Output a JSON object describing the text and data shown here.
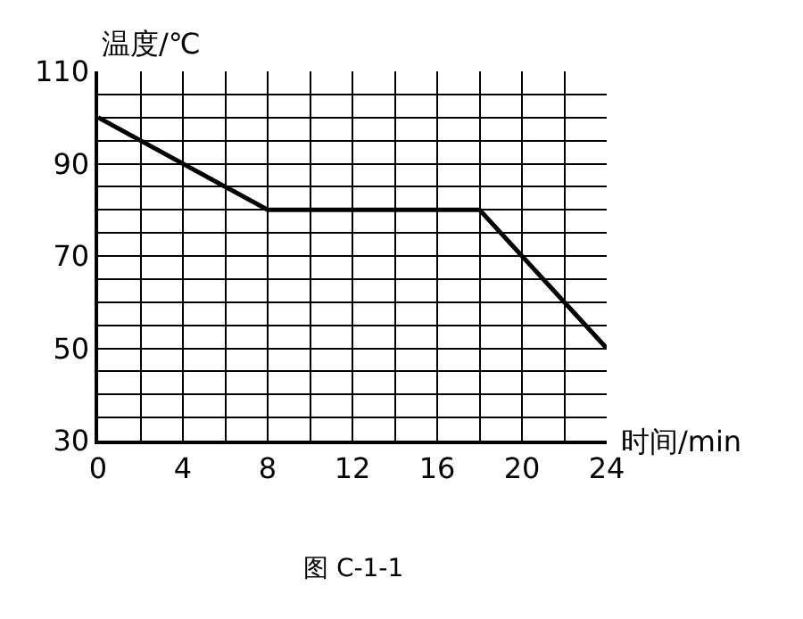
{
  "chart_data": {
    "type": "line",
    "xlabel": "时间/min",
    "ylabel": "温度/℃",
    "annotations": [
      "图 C-1-1"
    ],
    "x": [
      0,
      8,
      18,
      24
    ],
    "series": [
      {
        "color": "#000000",
        "values": [
          100,
          80,
          80,
          50
        ]
      }
    ],
    "xlim": [
      0,
      24
    ],
    "xticks": [
      0,
      {
        "value": 2,
        "label": null
      },
      4,
      {
        "value": 6,
        "label": null
      },
      8,
      {
        "value": 10,
        "label": null
      },
      12,
      {
        "value": 14,
        "label": null
      },
      16,
      {
        "value": 18,
        "label": null
      },
      20,
      {
        "value": 22,
        "label": null
      },
      24
    ],
    "ylim": [
      30,
      110
    ],
    "yticks": [
      30,
      {
        "value": 35,
        "label": null
      },
      {
        "value": 40,
        "label": null
      },
      {
        "value": 45,
        "label": null
      },
      50,
      {
        "value": 55,
        "label": null
      },
      {
        "value": 60,
        "label": null
      },
      {
        "value": 65,
        "label": null
      },
      70,
      {
        "value": 75,
        "label": null
      },
      {
        "value": 80,
        "label": null
      },
      {
        "value": 85,
        "label": null
      },
      90,
      {
        "value": 95,
        "label": null
      },
      {
        "value": 100,
        "label": null
      },
      {
        "value": 105,
        "label": null
      },
      110
    ],
    "grid": true,
    "marker": "none",
    "line_style": "solid",
    "legend": false
  }
}
